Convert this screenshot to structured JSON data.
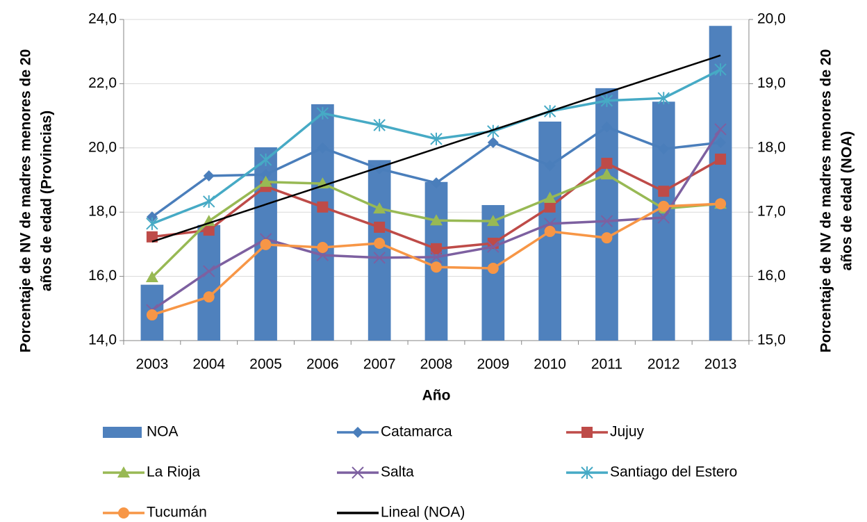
{
  "chart_data": {
    "type": "bar-line",
    "x_label": "Año",
    "y_label": [
      "Porcentaje de NV de madres menores de 20",
      "años de edad (Provincias)"
    ],
    "y2_label": [
      "Porcentaje de NV de madres menores de 20",
      "años de edad (NOA)"
    ],
    "categories": [
      "2003",
      "2004",
      "2005",
      "2006",
      "2007",
      "2008",
      "2009",
      "2010",
      "2011",
      "2012",
      "2013"
    ],
    "ylim": [
      14,
      24
    ],
    "yticks": [
      {
        "value": 14,
        "label": "14,0"
      },
      {
        "value": 16,
        "label": "16,0"
      },
      {
        "value": 18,
        "label": "18,0"
      },
      {
        "value": 20,
        "label": "20,0"
      },
      {
        "value": 22,
        "label": "22,0"
      },
      {
        "value": 24,
        "label": "24,0"
      }
    ],
    "y2lim": [
      15,
      20
    ],
    "y2ticks": [
      {
        "value": 15,
        "label": "15,0"
      },
      {
        "value": 16,
        "label": "16,0"
      },
      {
        "value": 17,
        "label": "17,0"
      },
      {
        "value": 18,
        "label": "18,0"
      },
      {
        "value": 19,
        "label": "19,0"
      },
      {
        "value": 20,
        "label": "20,0"
      }
    ],
    "grid": true,
    "series": [
      {
        "name": "NOA",
        "kind": "bar",
        "axis": "y2",
        "color": "#4f81bd",
        "values": [
          15.87,
          16.8,
          18.01,
          18.68,
          17.81,
          17.47,
          17.11,
          18.41,
          18.93,
          18.72,
          19.9
        ]
      },
      {
        "name": "Catamarca",
        "kind": "line",
        "marker": "diamond",
        "color": "#4a7ebb",
        "values": [
          17.85,
          19.13,
          19.17,
          20.0,
          19.35,
          18.91,
          20.17,
          19.45,
          20.65,
          19.97,
          20.17
        ]
      },
      {
        "name": "Jujuy",
        "kind": "line",
        "marker": "square",
        "color": "#be4b48",
        "values": [
          17.23,
          17.44,
          18.8,
          18.16,
          17.53,
          16.86,
          17.03,
          18.16,
          19.52,
          18.65,
          19.65
        ]
      },
      {
        "name": "La Rioja",
        "kind": "line",
        "marker": "triangle",
        "color": "#98b954",
        "values": [
          15.97,
          17.72,
          18.94,
          18.89,
          18.11,
          17.74,
          17.72,
          18.44,
          19.17,
          18.11,
          18.26
        ]
      },
      {
        "name": "Salta",
        "kind": "line",
        "marker": "x",
        "color": "#7d60a0",
        "values": [
          14.95,
          16.16,
          17.16,
          16.66,
          16.58,
          16.6,
          16.92,
          17.64,
          17.72,
          17.83,
          20.58
        ]
      },
      {
        "name": "Santiago del Estero",
        "kind": "line",
        "marker": "star",
        "color": "#46aac5",
        "values": [
          17.64,
          18.33,
          19.63,
          21.08,
          20.71,
          20.28,
          20.52,
          21.14,
          21.47,
          21.55,
          22.44
        ]
      },
      {
        "name": "Tucumán",
        "kind": "line",
        "marker": "circle",
        "color": "#f79646",
        "values": [
          14.8,
          15.36,
          16.99,
          16.9,
          17.03,
          16.29,
          16.25,
          17.4,
          17.2,
          18.18,
          18.26
        ]
      },
      {
        "name": "Lineal (NOA)",
        "kind": "line",
        "marker": "none",
        "axis": "y2",
        "color": "#000000",
        "values": [
          16.54,
          16.83,
          17.12,
          17.41,
          17.7,
          17.99,
          18.28,
          18.57,
          18.86,
          19.15,
          19.44
        ]
      }
    ]
  }
}
